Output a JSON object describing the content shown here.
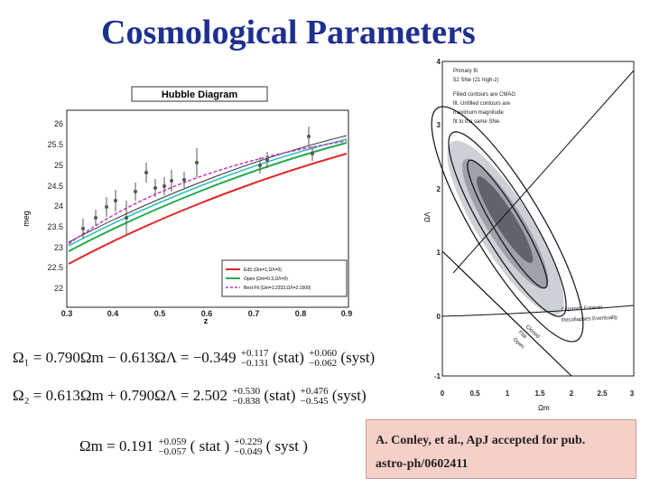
{
  "title": "Cosmological Parameters",
  "hubble": {
    "title": "Hubble Diagram",
    "xlabel": "z",
    "ylabel": "meg",
    "xticks": [
      "0.3",
      "0.4",
      "0.5",
      "0.6",
      "0.7",
      "0.8",
      "0.9"
    ],
    "yticks": [
      "22",
      "22.5",
      "23",
      "23.5",
      "24",
      "24.5",
      "25",
      "25.5",
      "26"
    ],
    "legend": [
      "EdS (Ωm=1,ΩΛ=0)",
      "Open (Ωm=0.3,ΩΛ=0)",
      "Best Fit (Ωm=1.2333,ΩΛ=2.1500)"
    ]
  },
  "omega": {
    "yticks": [
      "4",
      "3",
      "2",
      "1",
      "0",
      "-1"
    ],
    "xticks": [
      "0",
      "0.5",
      "1",
      "1.5",
      "2",
      "2.5",
      "3"
    ],
    "xlabel": "Ωm",
    "ylabel": "ΩΛ",
    "note1": "Primary fit",
    "note2": "52 SNe (21 high-z)",
    "note3": "Filled contours are CMAG",
    "note4": "fit. Unfilled contours are",
    "note5": "maximum magnitude",
    "note6": "fit to the same SNe.",
    "expands": "Expands Forever",
    "recollapses": "Recollapses Eventually",
    "closed": "Closed",
    "flat": "Flat",
    "open": "Open"
  },
  "equations": {
    "eq1": {
      "lhs": "Ω₁ = 0.790Ωm − 0.613ΩΛ = −0.349",
      "stat_up": "+0.117",
      "stat_dn": "−0.131",
      "syst_up": "+0.060",
      "syst_dn": "−0.062"
    },
    "eq2": {
      "lhs": "Ω₂ = 0.613Ωm + 0.790ΩΛ = 2.502",
      "stat_up": "+0.530",
      "stat_dn": "−0.838",
      "syst_up": "+0.476",
      "syst_dn": "−0.545"
    },
    "eq3": {
      "lhs": "Ωm = 0.191",
      "stat_up": "+0.059",
      "stat_dn": "−0.057",
      "syst_up": "+0.229",
      "syst_dn": "−0.049"
    },
    "stat": "(stat)",
    "syst": "(syst)",
    "stat_spaced": "( stat )",
    "syst_spaced": "( syst )"
  },
  "citation": {
    "line1": "A. Conley, et al., ApJ accepted for pub.",
    "line2": "astro-ph/0602411"
  }
}
